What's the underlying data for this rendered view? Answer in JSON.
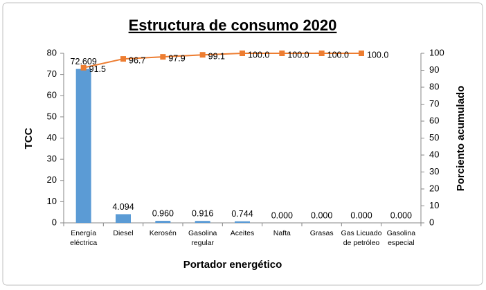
{
  "chart_data": {
    "type": "pareto",
    "title": "Estructura de consumo 2020",
    "x_label": "Portador energético",
    "y_label": "TCC",
    "y2_label": "Porciento acumulado",
    "categories": [
      [
        "Energía",
        "eléctrica"
      ],
      [
        "Diesel"
      ],
      [
        "Kerosén"
      ],
      [
        "Gasolina",
        "regular"
      ],
      [
        "Aceites"
      ],
      [
        "Nafta"
      ],
      [
        "Grasas"
      ],
      [
        "Gas Licuado",
        "de petróleo"
      ],
      [
        "Gasolina",
        "especial"
      ]
    ],
    "series": [
      {
        "name": "TCC",
        "type": "bar",
        "color": "#5b9bd5",
        "values": [
          72.609,
          4.094,
          0.96,
          0.916,
          0.744,
          0,
          0,
          0,
          0
        ],
        "value_labels": [
          "72.609",
          "4.094",
          "0.960",
          "0.916",
          "0.744",
          "0.000",
          "0.000",
          "0.000",
          "0.000"
        ]
      },
      {
        "name": "Porciento acumulado",
        "type": "line",
        "axis": "y2",
        "color": "#ed7d31",
        "values": [
          91.5,
          96.7,
          97.9,
          99.1,
          100,
          100,
          100,
          100,
          null
        ],
        "value_labels": [
          "91.5",
          "96.7",
          "97.9",
          "99.1",
          "100.0",
          "100.0",
          "100.0",
          "100.0",
          null
        ]
      }
    ],
    "ylim": [
      0,
      80
    ],
    "yticks": [
      0,
      10,
      20,
      30,
      40,
      50,
      60,
      70,
      80
    ],
    "y2lim": [
      0,
      100
    ],
    "y2ticks": [
      0,
      10,
      20,
      30,
      40,
      50,
      60,
      70,
      80,
      90,
      100
    ],
    "grid": false
  }
}
